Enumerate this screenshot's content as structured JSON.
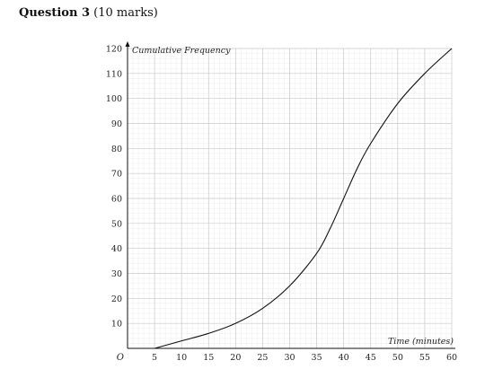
{
  "question": {
    "label": "Question 3",
    "marks": "(10 marks)"
  },
  "chart_data": {
    "type": "line",
    "title": "",
    "xlabel": "Time (minutes)",
    "ylabel": "Cumulative Frequency",
    "origin_label": "O",
    "xlim": [
      0,
      60
    ],
    "ylim": [
      0,
      120
    ],
    "x_ticks": [
      5,
      10,
      15,
      20,
      25,
      30,
      35,
      40,
      45,
      50,
      55,
      60
    ],
    "y_ticks": [
      10,
      20,
      30,
      40,
      50,
      60,
      70,
      80,
      90,
      100,
      110,
      120
    ],
    "grid": true,
    "series": [
      {
        "x": [
          5,
          10,
          15,
          20,
          25,
          30,
          35,
          37.5,
          40,
          42.5,
          45,
          50,
          55,
          60
        ],
        "y": [
          0,
          3,
          6,
          10,
          16,
          25,
          38,
          48,
          60,
          72,
          82,
          98,
          110,
          120
        ]
      }
    ],
    "colors": {
      "line": "#111111",
      "grid_major": "#c8c8c8",
      "grid_minor": "#ececec",
      "axis": "#111111"
    }
  }
}
